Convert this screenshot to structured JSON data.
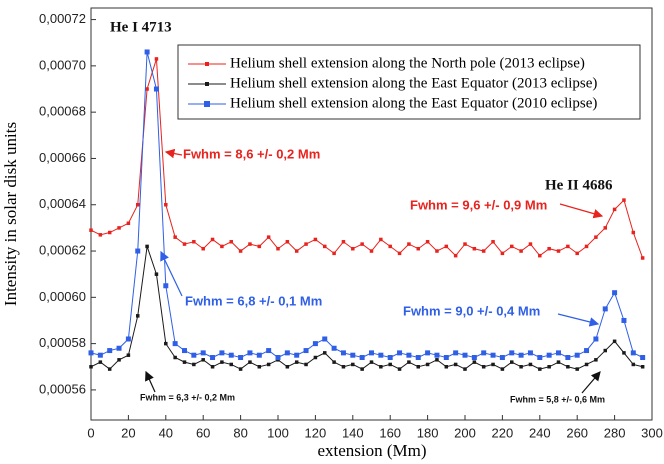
{
  "chart_data": {
    "type": "line",
    "x_label": "extension (Mm)",
    "y_label": "Intensity in solar disk units",
    "xlim": [
      0,
      300
    ],
    "xticks": [
      0,
      20,
      40,
      60,
      80,
      100,
      120,
      140,
      160,
      180,
      200,
      220,
      240,
      260,
      280,
      300
    ],
    "ylim": [
      0.000547,
      0.000725
    ],
    "yticks": [
      {
        "value": 0.00056,
        "label": "0,00056"
      },
      {
        "value": 0.00058,
        "label": "0,00058"
      },
      {
        "value": 0.0006,
        "label": "0,00060"
      },
      {
        "value": 0.00062,
        "label": "0,00062"
      },
      {
        "value": 0.00064,
        "label": "0,00064"
      },
      {
        "value": 0.00066,
        "label": "0,00066"
      },
      {
        "value": 0.00068,
        "label": "0,00068"
      },
      {
        "value": 0.0007,
        "label": "0,00070"
      },
      {
        "value": 0.00072,
        "label": "0,00072"
      }
    ],
    "legend": "top-right",
    "x": [
      0,
      5,
      10,
      15,
      20,
      25,
      30,
      35,
      40,
      45,
      50,
      55,
      60,
      65,
      70,
      75,
      80,
      85,
      90,
      95,
      100,
      105,
      110,
      115,
      120,
      125,
      130,
      135,
      140,
      145,
      150,
      155,
      160,
      165,
      170,
      175,
      180,
      185,
      190,
      195,
      200,
      205,
      210,
      215,
      220,
      225,
      230,
      235,
      240,
      245,
      250,
      255,
      260,
      265,
      270,
      275,
      280,
      285,
      290,
      295
    ],
    "series": [
      {
        "name": "Helium shell extension along the North pole (2013 eclipse)",
        "color": "#e8231e",
        "values": [
          0.000629,
          0.000627,
          0.000628,
          0.00063,
          0.000632,
          0.00064,
          0.00069,
          0.000703,
          0.00064,
          0.000626,
          0.000623,
          0.000624,
          0.000621,
          0.000625,
          0.000622,
          0.000624,
          0.00062,
          0.000623,
          0.000622,
          0.000626,
          0.000621,
          0.000624,
          0.00062,
          0.000623,
          0.000625,
          0.000622,
          0.000619,
          0.000624,
          0.000621,
          0.000623,
          0.00062,
          0.000625,
          0.000622,
          0.000619,
          0.000623,
          0.000621,
          0.000624,
          0.00062,
          0.000622,
          0.000618,
          0.000623,
          0.000621,
          0.00062,
          0.000624,
          0.000619,
          0.000622,
          0.00062,
          0.000623,
          0.000618,
          0.000621,
          0.00062,
          0.000622,
          0.000619,
          0.000622,
          0.000626,
          0.00063,
          0.000638,
          0.000642,
          0.000628,
          0.000617
        ]
      },
      {
        "name": "Helium shell extension along the East Equator (2013 eclipse)",
        "color": "#1a1a1a",
        "values": [
          0.00057,
          0.000572,
          0.000569,
          0.000573,
          0.000575,
          0.000592,
          0.000622,
          0.00061,
          0.00058,
          0.000574,
          0.000572,
          0.000571,
          0.000573,
          0.00057,
          0.000572,
          0.000571,
          0.000569,
          0.000572,
          0.00057,
          0.000571,
          0.000573,
          0.00057,
          0.000572,
          0.000571,
          0.000574,
          0.000576,
          0.000572,
          0.00057,
          0.000571,
          0.000569,
          0.000572,
          0.00057,
          0.000571,
          0.000569,
          0.000572,
          0.00057,
          0.000571,
          0.000573,
          0.00057,
          0.000571,
          0.000569,
          0.000572,
          0.00057,
          0.000571,
          0.000569,
          0.000572,
          0.00057,
          0.000571,
          0.000569,
          0.00057,
          0.000572,
          0.00057,
          0.000569,
          0.000571,
          0.000573,
          0.000577,
          0.000581,
          0.000576,
          0.000571,
          0.00057
        ]
      },
      {
        "name": "Helium shell extension along the East Equator (2010 eclipse)",
        "color": "#2f5fe6",
        "values": [
          0.000576,
          0.000575,
          0.000577,
          0.000578,
          0.000582,
          0.00062,
          0.000706,
          0.00069,
          0.000605,
          0.00058,
          0.000577,
          0.000575,
          0.000576,
          0.000574,
          0.000576,
          0.000575,
          0.000574,
          0.000576,
          0.000575,
          0.000577,
          0.000574,
          0.000576,
          0.000575,
          0.000577,
          0.00058,
          0.000582,
          0.000578,
          0.000576,
          0.000575,
          0.000574,
          0.000576,
          0.000575,
          0.000574,
          0.000576,
          0.000575,
          0.000574,
          0.000576,
          0.000575,
          0.000574,
          0.000576,
          0.000575,
          0.000574,
          0.000576,
          0.000575,
          0.000574,
          0.000576,
          0.000575,
          0.000576,
          0.000574,
          0.000575,
          0.000576,
          0.000574,
          0.000575,
          0.000577,
          0.000582,
          0.000595,
          0.000602,
          0.00059,
          0.000576,
          0.000574
        ]
      }
    ],
    "annotations": [
      "He I 4713",
      "He II 4686",
      "Fwhm = 8,6 +/- 0,2 Mm",
      "Fwhm = 9,6 +/- 0,9 Mm",
      "Fwhm = 6,8 +/- 0,1 Mm",
      "Fwhm = 9,0 +/- 0,4 Mm",
      "Fwhm = 6,3 +/- 0,2 Mm",
      "Fwhm = 5,8 +/- 0,6 Mm"
    ]
  }
}
